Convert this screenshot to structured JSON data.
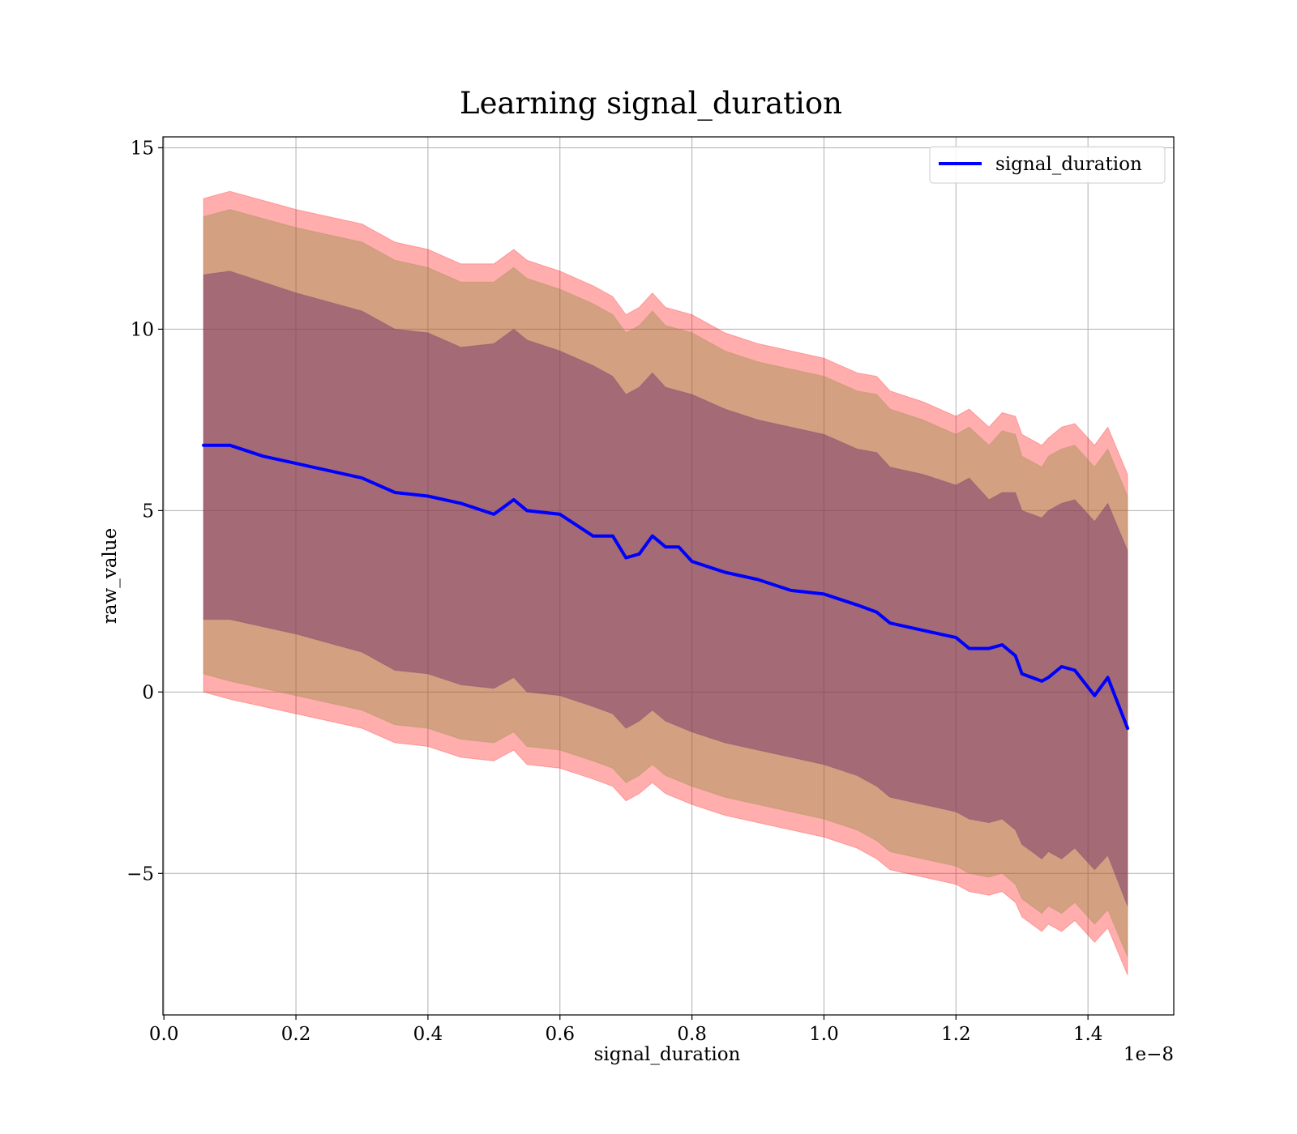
{
  "chart_data": {
    "type": "line",
    "title": "Learning signal_duration",
    "xlabel": "signal_duration",
    "ylabel": "raw_value",
    "x_offset_label": "1e−8",
    "xlim": [
      -0.0015,
      1.53
    ],
    "ylim": [
      -8.9,
      15.3
    ],
    "xticks": [
      0.0,
      0.2,
      0.4,
      0.6,
      0.8,
      1.0,
      1.2,
      1.4
    ],
    "xtick_labels": [
      "0.0",
      "0.2",
      "0.4",
      "0.6",
      "0.8",
      "1.0",
      "1.2",
      "1.4"
    ],
    "yticks": [
      -5,
      0,
      5,
      10,
      15
    ],
    "ytick_labels": [
      "−5",
      "0",
      "5",
      "10",
      "15"
    ],
    "grid": true,
    "legend_position": "top-right",
    "colors": {
      "line": "#0000ff",
      "outer_band": "#ff0000",
      "middle_band": "#8b8b3a",
      "inner_band": "#6b2a6b"
    },
    "series": [
      {
        "name": "signal_duration",
        "x": [
          0.06,
          0.1,
          0.15,
          0.2,
          0.25,
          0.3,
          0.35,
          0.4,
          0.45,
          0.5,
          0.53,
          0.55,
          0.6,
          0.65,
          0.68,
          0.7,
          0.72,
          0.74,
          0.76,
          0.78,
          0.8,
          0.85,
          0.9,
          0.95,
          1.0,
          1.05,
          1.08,
          1.1,
          1.15,
          1.2,
          1.22,
          1.25,
          1.27,
          1.29,
          1.3,
          1.33,
          1.34,
          1.36,
          1.38,
          1.41,
          1.43,
          1.46
        ],
        "y": [
          6.8,
          6.8,
          6.5,
          6.3,
          6.1,
          5.9,
          5.5,
          5.4,
          5.2,
          4.9,
          5.3,
          5.0,
          4.9,
          4.3,
          4.3,
          3.7,
          3.8,
          4.3,
          4.0,
          4.0,
          3.6,
          3.3,
          3.1,
          2.8,
          2.7,
          2.4,
          2.2,
          1.9,
          1.7,
          1.5,
          1.2,
          1.2,
          1.3,
          1.0,
          0.5,
          0.3,
          0.4,
          0.7,
          0.6,
          -0.1,
          0.4,
          -1.0
        ]
      }
    ],
    "bands": [
      {
        "x": [
          0.06,
          0.1,
          0.2,
          0.3,
          0.35,
          0.4,
          0.45,
          0.5,
          0.53,
          0.55,
          0.6,
          0.65,
          0.68,
          0.7,
          0.72,
          0.74,
          0.76,
          0.8,
          0.85,
          0.9,
          1.0,
          1.05,
          1.08,
          1.1,
          1.15,
          1.2,
          1.22,
          1.25,
          1.27,
          1.29,
          1.3,
          1.33,
          1.34,
          1.36,
          1.38,
          1.41,
          1.43,
          1.46
        ],
        "upper": [
          13.6,
          13.8,
          13.3,
          12.9,
          12.4,
          12.2,
          11.8,
          11.8,
          12.2,
          11.9,
          11.6,
          11.2,
          10.9,
          10.4,
          10.6,
          11.0,
          10.6,
          10.4,
          9.9,
          9.6,
          9.2,
          8.8,
          8.7,
          8.3,
          8.0,
          7.6,
          7.8,
          7.3,
          7.7,
          7.6,
          7.1,
          6.8,
          7.0,
          7.3,
          7.4,
          6.8,
          7.3,
          6.0
        ],
        "lower": [
          0.0,
          -0.2,
          -0.6,
          -1.0,
          -1.4,
          -1.5,
          -1.8,
          -1.9,
          -1.6,
          -2.0,
          -2.1,
          -2.4,
          -2.6,
          -3.0,
          -2.8,
          -2.5,
          -2.8,
          -3.1,
          -3.4,
          -3.6,
          -4.0,
          -4.3,
          -4.6,
          -4.9,
          -5.1,
          -5.3,
          -5.5,
          -5.6,
          -5.5,
          -5.8,
          -6.2,
          -6.6,
          -6.4,
          -6.6,
          -6.3,
          -6.9,
          -6.5,
          -7.8
        ]
      },
      {
        "x": [
          0.06,
          0.1,
          0.2,
          0.3,
          0.35,
          0.4,
          0.45,
          0.5,
          0.53,
          0.55,
          0.6,
          0.65,
          0.68,
          0.7,
          0.72,
          0.74,
          0.76,
          0.8,
          0.85,
          0.9,
          1.0,
          1.05,
          1.08,
          1.1,
          1.15,
          1.2,
          1.22,
          1.25,
          1.27,
          1.29,
          1.3,
          1.33,
          1.34,
          1.36,
          1.38,
          1.41,
          1.43,
          1.46
        ],
        "upper": [
          13.1,
          13.3,
          12.8,
          12.4,
          11.9,
          11.7,
          11.3,
          11.3,
          11.7,
          11.4,
          11.1,
          10.7,
          10.4,
          9.9,
          10.1,
          10.5,
          10.1,
          9.9,
          9.4,
          9.1,
          8.7,
          8.3,
          8.2,
          7.8,
          7.5,
          7.1,
          7.3,
          6.8,
          7.2,
          7.1,
          6.5,
          6.2,
          6.5,
          6.7,
          6.8,
          6.2,
          6.7,
          5.4
        ],
        "lower": [
          0.5,
          0.3,
          -0.1,
          -0.5,
          -0.9,
          -1.0,
          -1.3,
          -1.4,
          -1.1,
          -1.5,
          -1.6,
          -1.9,
          -2.1,
          -2.5,
          -2.3,
          -2.0,
          -2.3,
          -2.6,
          -2.9,
          -3.1,
          -3.5,
          -3.8,
          -4.1,
          -4.4,
          -4.6,
          -4.8,
          -5.0,
          -5.1,
          -5.0,
          -5.3,
          -5.7,
          -6.1,
          -5.9,
          -6.1,
          -5.8,
          -6.4,
          -6.0,
          -7.3
        ]
      },
      {
        "x": [
          0.06,
          0.1,
          0.2,
          0.3,
          0.35,
          0.4,
          0.45,
          0.5,
          0.53,
          0.55,
          0.6,
          0.65,
          0.68,
          0.7,
          0.72,
          0.74,
          0.76,
          0.8,
          0.85,
          0.9,
          1.0,
          1.05,
          1.08,
          1.1,
          1.15,
          1.2,
          1.22,
          1.25,
          1.27,
          1.29,
          1.3,
          1.33,
          1.34,
          1.36,
          1.38,
          1.41,
          1.43,
          1.46
        ],
        "upper": [
          11.5,
          11.6,
          11.0,
          10.5,
          10.0,
          9.9,
          9.5,
          9.6,
          10.0,
          9.7,
          9.4,
          9.0,
          8.7,
          8.2,
          8.4,
          8.8,
          8.4,
          8.2,
          7.8,
          7.5,
          7.1,
          6.7,
          6.6,
          6.2,
          6.0,
          5.7,
          5.9,
          5.3,
          5.5,
          5.5,
          5.0,
          4.8,
          5.0,
          5.2,
          5.3,
          4.7,
          5.2,
          3.9
        ],
        "lower": [
          2.0,
          2.0,
          1.6,
          1.1,
          0.6,
          0.5,
          0.2,
          0.1,
          0.4,
          0.0,
          -0.1,
          -0.4,
          -0.6,
          -1.0,
          -0.8,
          -0.5,
          -0.8,
          -1.1,
          -1.4,
          -1.6,
          -2.0,
          -2.3,
          -2.6,
          -2.9,
          -3.1,
          -3.3,
          -3.5,
          -3.6,
          -3.5,
          -3.8,
          -4.2,
          -4.6,
          -4.4,
          -4.6,
          -4.3,
          -4.9,
          -4.5,
          -5.9
        ]
      }
    ]
  }
}
